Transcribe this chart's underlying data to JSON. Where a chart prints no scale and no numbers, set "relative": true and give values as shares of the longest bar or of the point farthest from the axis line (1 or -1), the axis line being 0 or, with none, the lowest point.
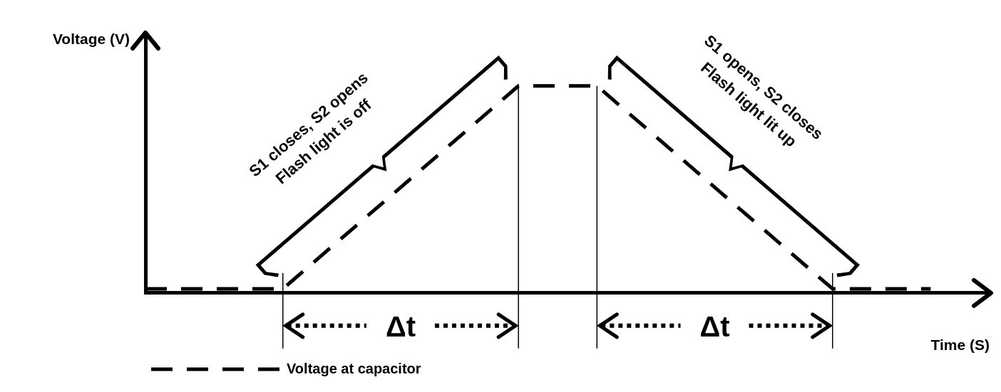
{
  "chart_data": {
    "type": "line",
    "relative": true,
    "xlabel": "Time (S)",
    "ylabel": "Voltage (V)",
    "categories": [
      null,
      null,
      null,
      null,
      null,
      null,
      null,
      null,
      null,
      null,
      null,
      null,
      null,
      null,
      null,
      null,
      null,
      null,
      null,
      null,
      null,
      null,
      null,
      null,
      null,
      null,
      null,
      null,
      null,
      null,
      null,
      null,
      null,
      null,
      null,
      null,
      null,
      null,
      null,
      null,
      null,
      null,
      null,
      null
    ],
    "series": [
      {
        "name": "Voltage at capacitor",
        "color": "#000000",
        "values": [
          0.02,
          null,
          null,
          null,
          null,
          null,
          null,
          0.02,
          null,
          null,
          null,
          null,
          null,
          null,
          null,
          null,
          null,
          null,
          null,
          1,
          null,
          null,
          null,
          1,
          null,
          null,
          null,
          null,
          null,
          null,
          null,
          null,
          null,
          null,
          null,
          0.02,
          null,
          null,
          null,
          null,
          0.02,
          null,
          null,
          null
        ]
      }
    ],
    "line_style": "dashed",
    "marker": "none",
    "legend": "bottom left",
    "tick_labels": false,
    "annotations": [
      "S1 closes, S2 opens",
      "Flash light is off",
      "S1 opens, S2 closes",
      "Flash light lit up",
      "Δt",
      "Δt"
    ]
  }
}
